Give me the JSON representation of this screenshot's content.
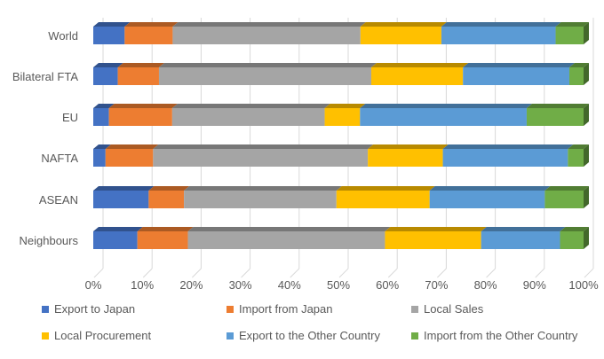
{
  "chart_data": {
    "type": "bar",
    "orientation": "horizontal",
    "stacked": "percent",
    "three_d": true,
    "categories": [
      "World",
      "Bilateral FTA",
      "EU",
      "NAFTA",
      "ASEAN",
      "Neighbours"
    ],
    "series": [
      {
        "name": "Export to Japan",
        "color": "#4472C4",
        "values": [
          6.4,
          5.0,
          3.2,
          2.5,
          11.3,
          9.0
        ]
      },
      {
        "name": "Import from Japan",
        "color": "#ED7D31",
        "values": [
          9.8,
          8.4,
          12.9,
          9.7,
          7.2,
          10.3
        ]
      },
      {
        "name": "Local Sales",
        "color": "#A5A5A5",
        "values": [
          38.3,
          43.3,
          31.1,
          43.8,
          31.1,
          40.2
        ]
      },
      {
        "name": "Local Procurement",
        "color": "#FFC000",
        "values": [
          16.5,
          18.7,
          7.2,
          15.3,
          19.0,
          19.6
        ]
      },
      {
        "name": "Export to the Other Country",
        "color": "#5B9BD5",
        "values": [
          23.3,
          21.7,
          34.0,
          25.5,
          23.5,
          16.1
        ]
      },
      {
        "name": "Import from the Other Country",
        "color": "#70AD47",
        "values": [
          5.7,
          2.9,
          11.6,
          3.2,
          7.9,
          4.8
        ]
      }
    ],
    "x_ticks": [
      "0%",
      "10%",
      "20%",
      "30%",
      "40%",
      "50%",
      "60%",
      "70%",
      "80%",
      "90%",
      "100%"
    ],
    "xlim": [
      0,
      100
    ],
    "grid": true,
    "legend": "bottom"
  }
}
